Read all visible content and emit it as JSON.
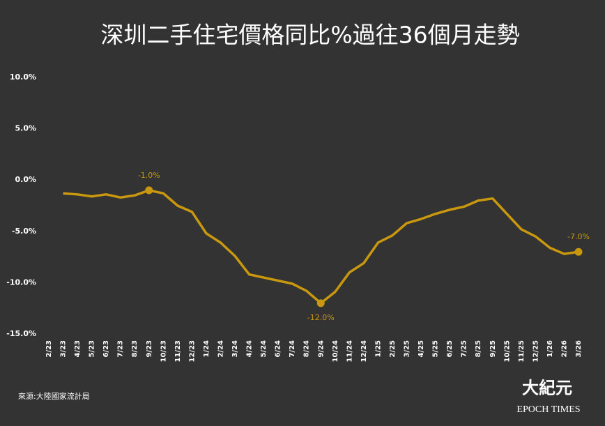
{
  "chart_data": {
    "type": "line",
    "title": "深圳二手住宅價格同比%過往36個月走勢",
    "categories": [
      "2/23",
      "3/23",
      "4/23",
      "5/23",
      "6/23",
      "7/23",
      "8/23",
      "9/23",
      "10/23",
      "11/23",
      "12/23",
      "1/24",
      "2/24",
      "3/24",
      "4/24",
      "5/24",
      "6/24",
      "7/24",
      "8/24",
      "9/24",
      "10/24",
      "11/24",
      "12/24",
      "1/25",
      "2/25",
      "3/25",
      "4/25",
      "5/25",
      "6/25",
      "7/25",
      "8/25",
      "9/25",
      "10/25",
      "11/25",
      "12/25",
      "1/26",
      "2/26",
      "3/26"
    ],
    "series": [
      {
        "name": "深圳二手住宅價格同比",
        "color": "#c9980f",
        "values": [
          null,
          -1.3,
          -1.4,
          -1.6,
          -1.4,
          -1.7,
          -1.5,
          -1.0,
          -1.3,
          -2.5,
          -3.1,
          -5.2,
          -6.1,
          -7.4,
          -9.2,
          -9.5,
          -9.8,
          -10.1,
          -10.8,
          -12.0,
          -10.9,
          -9.0,
          -8.1,
          -6.1,
          -5.4,
          -4.2,
          -3.8,
          -3.3,
          -2.9,
          -2.6,
          -2.0,
          -1.8,
          -3.3,
          -4.8,
          -5.5,
          -6.6,
          -7.2,
          -7.0
        ],
        "value_labels": [
          null,
          null,
          null,
          null,
          null,
          null,
          null,
          "-1.0%",
          null,
          null,
          null,
          null,
          null,
          null,
          null,
          null,
          null,
          null,
          null,
          "-12.0%",
          null,
          null,
          null,
          null,
          null,
          null,
          null,
          null,
          null,
          null,
          null,
          null,
          null,
          null,
          null,
          null,
          null,
          "-7.0%"
        ]
      }
    ],
    "ylim": [
      -15,
      10
    ],
    "yticks": [
      {
        "value": -15,
        "label": "-15.0%"
      },
      {
        "value": -10,
        "label": "-10.0%"
      },
      {
        "value": -5,
        "label": "-5.0%"
      },
      {
        "value": 0,
        "label": "0.0%"
      },
      {
        "value": 5,
        "label": "5.0%"
      },
      {
        "value": 10,
        "label": "10.0%"
      }
    ],
    "grid": false,
    "source": "來源:大陸國家流計局"
  },
  "logo": {
    "name": "大紀元",
    "subtitle": "EPOCH TIMES"
  }
}
